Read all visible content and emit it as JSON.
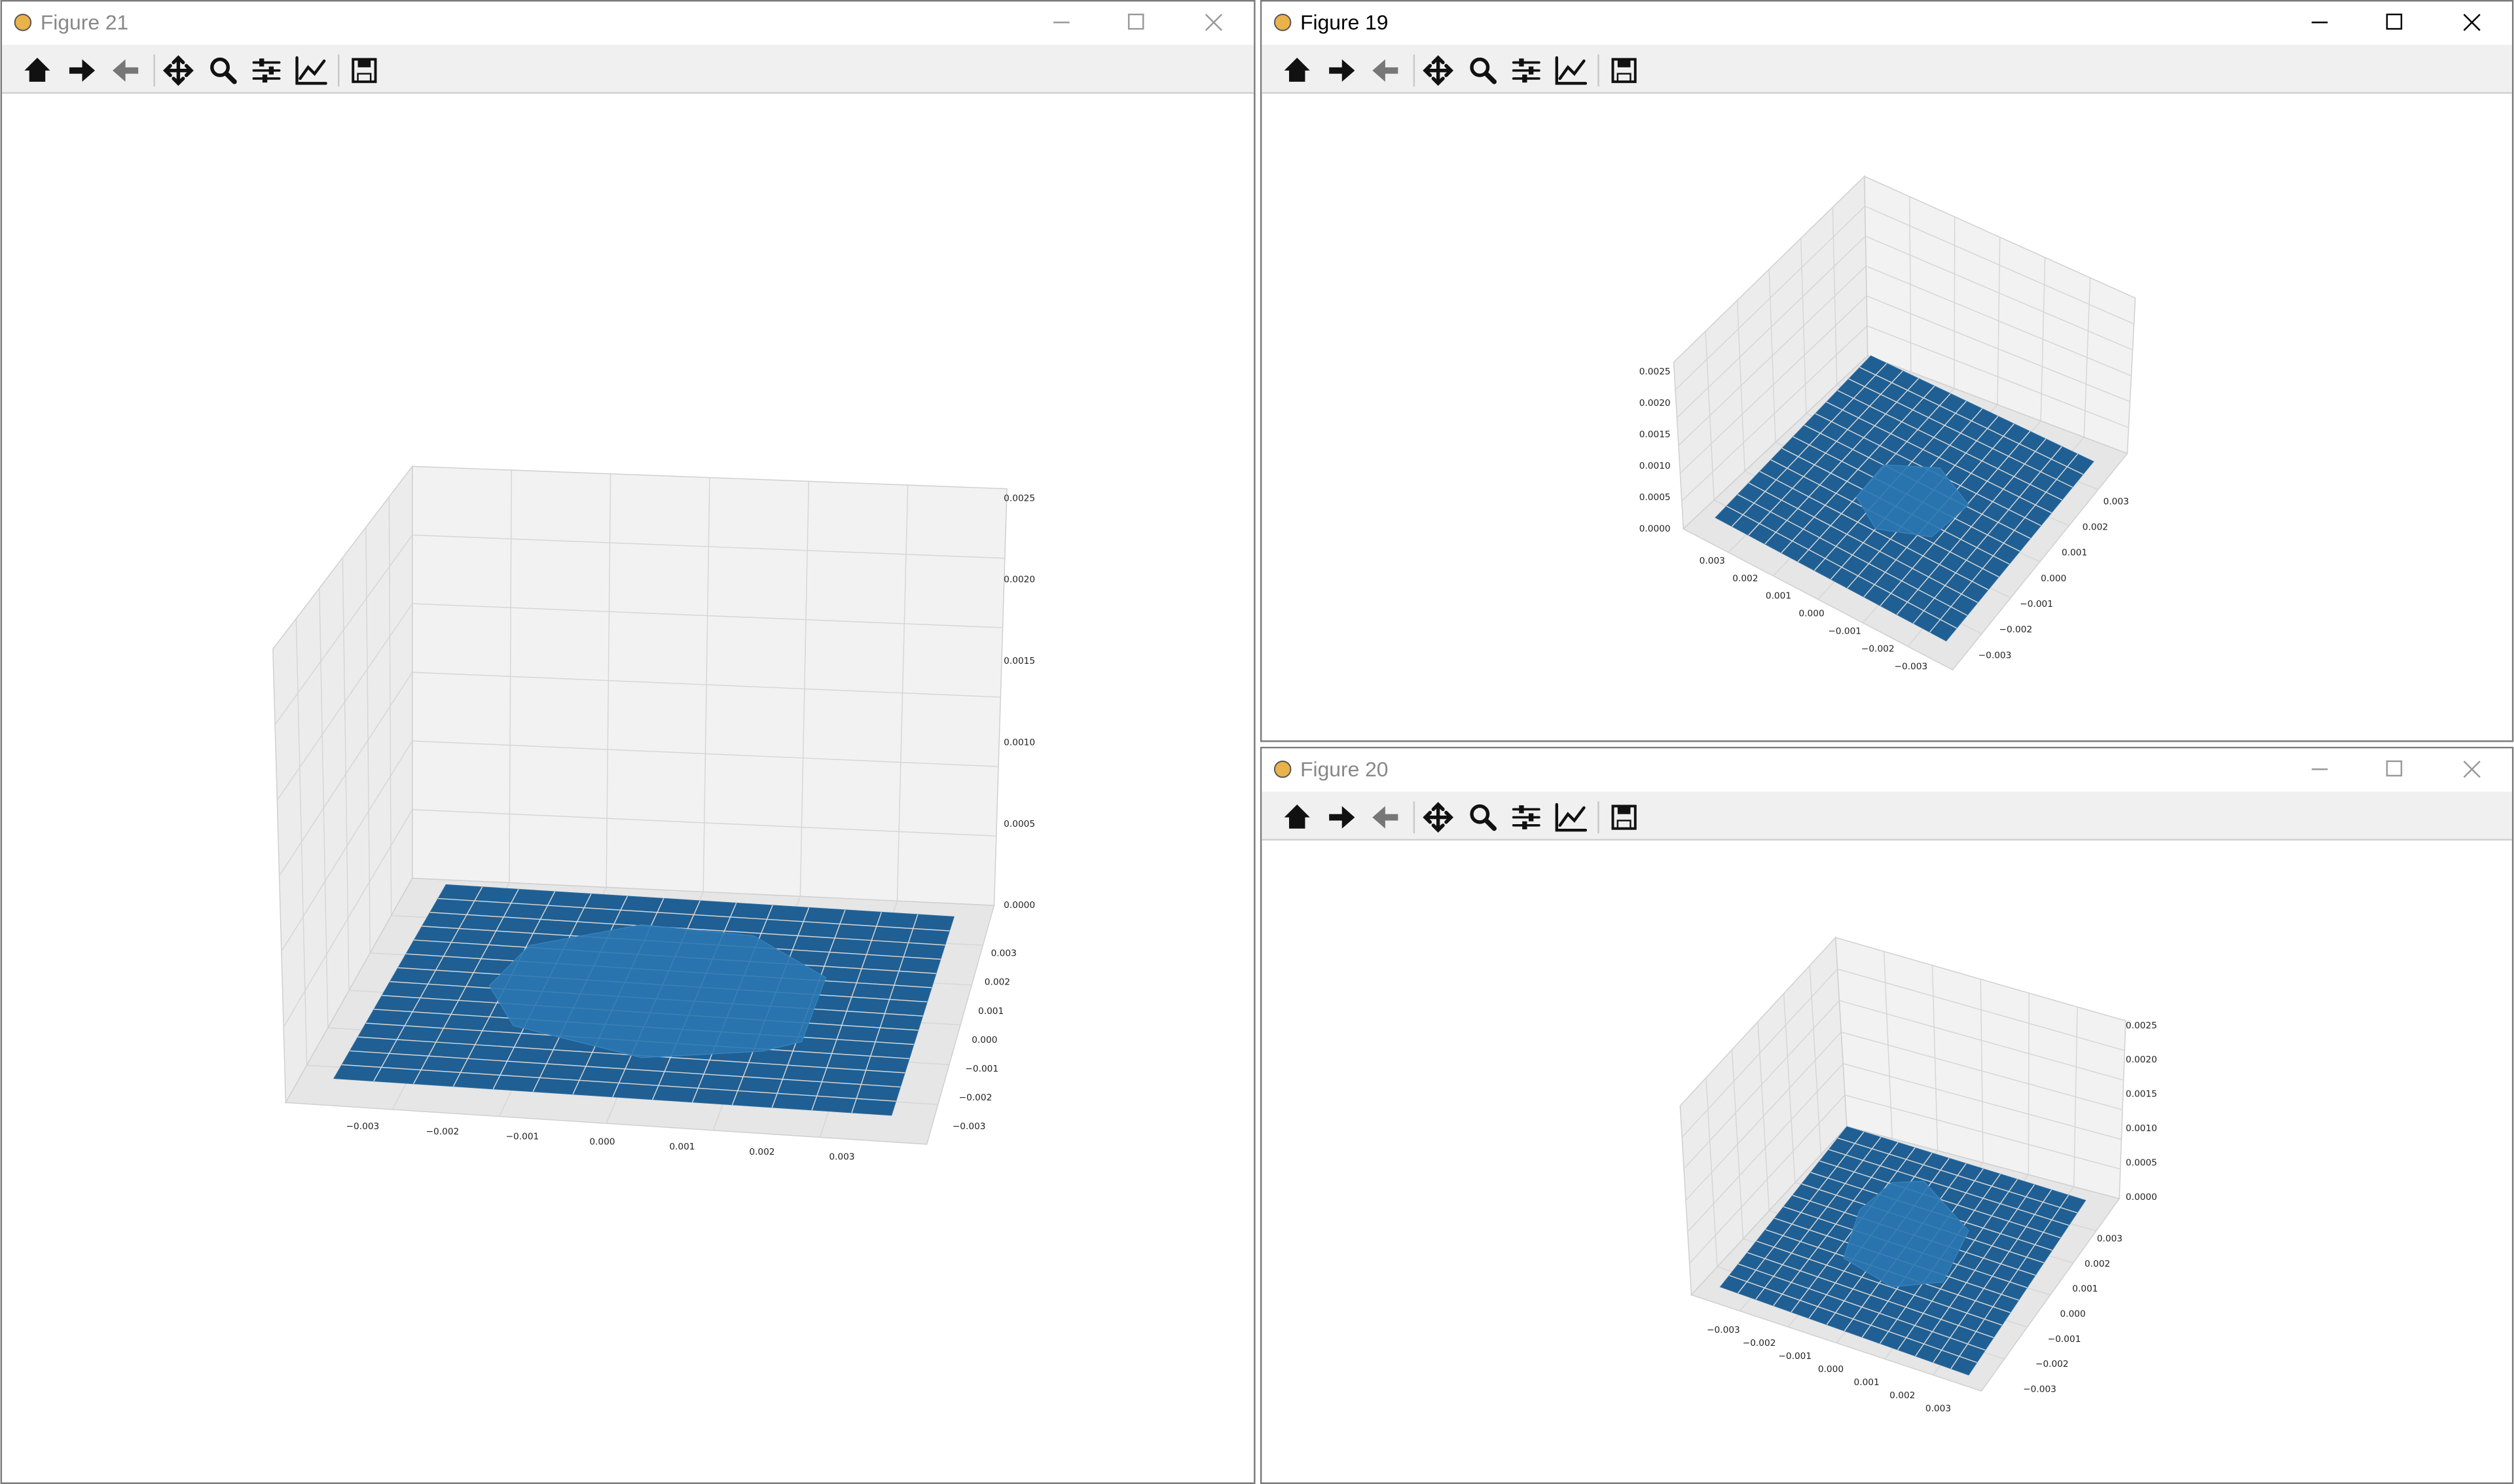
{
  "windows": [
    {
      "title": "Figure 21",
      "zticks": [
        "0.0000",
        "0.0005",
        "0.0010",
        "0.0015",
        "0.0020",
        "0.0025"
      ],
      "xticks": [
        "−0.003",
        "−0.002",
        "−0.001",
        "0.000",
        "0.001",
        "0.002",
        "0.003"
      ],
      "yticks": [
        "0.003",
        "0.002",
        "0.001",
        "0.000",
        "−0.001",
        "−0.002",
        "−0.003"
      ]
    },
    {
      "title": "Figure 19",
      "zticks": [
        "0.0000",
        "0.0005",
        "0.0010",
        "0.0015",
        "0.0020",
        "0.0025"
      ],
      "xticks": [
        "0.003",
        "0.002",
        "0.001",
        "0.000",
        "−0.001",
        "−0.002",
        "−0.003"
      ],
      "yticks": [
        "0.003",
        "0.002",
        "0.001",
        "0.000",
        "−0.001",
        "−0.002",
        "−0.003"
      ]
    },
    {
      "title": "Figure 20",
      "zticks": [
        "0.0000",
        "0.0005",
        "0.0010",
        "0.0015",
        "0.0020",
        "0.0025"
      ],
      "xticks": [
        "−0.003",
        "−0.002",
        "−0.001",
        "0.000",
        "0.001",
        "0.002",
        "0.003"
      ],
      "yticks": [
        "0.003",
        "0.002",
        "0.001",
        "0.000",
        "−0.001",
        "−0.002",
        "−0.003"
      ]
    }
  ]
}
